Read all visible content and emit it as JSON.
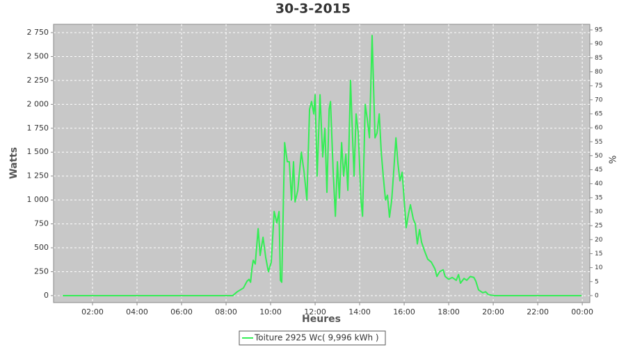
{
  "chart_data": {
    "type": "line",
    "title": "30-3-2015",
    "x_label": "Heures",
    "y_label": "Watts",
    "y2_label": "%",
    "x": [
      0.66,
      8.3,
      8.5,
      8.78,
      8.94,
      9.03,
      9.1,
      9.16,
      9.22,
      9.31,
      9.44,
      9.53,
      9.66,
      9.78,
      9.9,
      10.03,
      10.16,
      10.28,
      10.38,
      10.44,
      10.5,
      10.63,
      10.75,
      10.84,
      10.94,
      11.03,
      11.1,
      11.22,
      11.38,
      11.5,
      11.63,
      11.75,
      11.84,
      11.94,
      12.0,
      12.09,
      12.22,
      12.34,
      12.44,
      12.53,
      12.63,
      12.69,
      12.81,
      12.91,
      13.0,
      13.09,
      13.19,
      13.28,
      13.38,
      13.47,
      13.59,
      13.69,
      13.75,
      13.84,
      13.94,
      14.06,
      14.13,
      14.25,
      14.34,
      14.44,
      14.56,
      14.69,
      14.78,
      14.88,
      14.97,
      15.06,
      15.16,
      15.25,
      15.34,
      15.44,
      15.53,
      15.63,
      15.72,
      15.81,
      15.91,
      16.0,
      16.09,
      16.19,
      16.28,
      16.41,
      16.5,
      16.59,
      16.69,
      16.78,
      16.91,
      17.06,
      17.22,
      17.38,
      17.47,
      17.59,
      17.75,
      17.84,
      18.0,
      18.16,
      18.34,
      18.44,
      18.53,
      18.69,
      18.81,
      18.97,
      19.13,
      19.22,
      19.34,
      19.53,
      19.66,
      19.78,
      20.03,
      23.97
    ],
    "series": [
      {
        "name": "Toiture 2925 Wc( 9,996 kWh )",
        "color": "#33ee55",
        "values": [
          0,
          0,
          40,
          80,
          150,
          170,
          140,
          280,
          370,
          330,
          700,
          420,
          610,
          400,
          250,
          350,
          880,
          760,
          880,
          160,
          140,
          1600,
          1400,
          1400,
          1000,
          1400,
          980,
          1100,
          1500,
          1300,
          1000,
          1950,
          2030,
          1900,
          2100,
          1250,
          2100,
          1450,
          1750,
          1080,
          1950,
          2030,
          1300,
          830,
          1400,
          1020,
          1600,
          1250,
          1480,
          1100,
          2250,
          1600,
          1250,
          1900,
          1700,
          1000,
          830,
          2000,
          1850,
          1650,
          2720,
          1650,
          1700,
          1900,
          1500,
          1250,
          1000,
          1050,
          820,
          1000,
          1300,
          1650,
          1380,
          1200,
          1290,
          1000,
          710,
          850,
          950,
          800,
          750,
          540,
          690,
          560,
          470,
          380,
          350,
          280,
          200,
          250,
          270,
          200,
          170,
          190,
          160,
          220,
          130,
          180,
          160,
          200,
          190,
          150,
          60,
          30,
          40,
          10,
          0,
          0
        ]
      }
    ],
    "xlim": [
      0.25,
      24.34
    ],
    "xticks": [
      {
        "value": 2,
        "label": "02:00"
      },
      {
        "value": 4,
        "label": "04:00"
      },
      {
        "value": 6,
        "label": "06:00"
      },
      {
        "value": 8,
        "label": "08:00"
      },
      {
        "value": 10,
        "label": "10:00"
      },
      {
        "value": 12,
        "label": "12:00"
      },
      {
        "value": 14,
        "label": "14:00"
      },
      {
        "value": 16,
        "label": "16:00"
      },
      {
        "value": 18,
        "label": "18:00"
      },
      {
        "value": 20,
        "label": "20:00"
      },
      {
        "value": 22,
        "label": "22:00"
      },
      {
        "value": 24,
        "label": "00:00"
      }
    ],
    "ylim": [
      -73,
      2837
    ],
    "yticks": [
      0,
      250,
      500,
      750,
      {
        "value": 1000,
        "label": "1 000"
      },
      {
        "value": 1250,
        "label": "1 250"
      },
      {
        "value": 1500,
        "label": "1 500"
      },
      {
        "value": 1750,
        "label": "1 750"
      },
      {
        "value": 2000,
        "label": "2 000"
      },
      {
        "value": 2250,
        "label": "2 250"
      },
      {
        "value": 2500,
        "label": "2 500"
      },
      {
        "value": 2750,
        "label": "2 750"
      }
    ],
    "y2lim": [
      -2.5,
      97
    ],
    "y2ticks": [
      0,
      5,
      10,
      15,
      20,
      25,
      30,
      35,
      40,
      45,
      50,
      55,
      60,
      65,
      70,
      75,
      80,
      85,
      90,
      95
    ],
    "grid": true,
    "legend_position": "bottom"
  }
}
